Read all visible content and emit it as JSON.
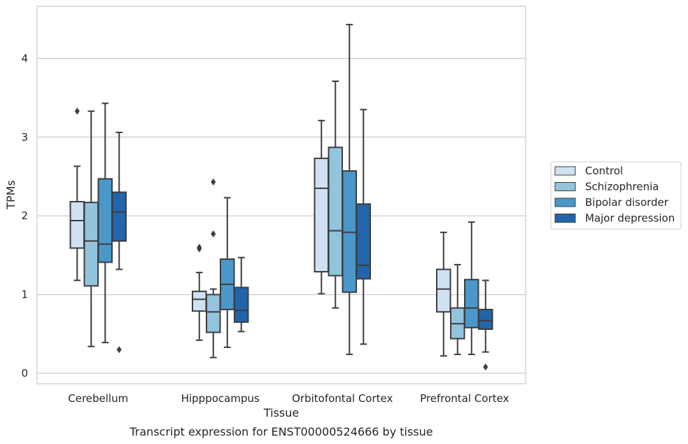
{
  "chart_data": {
    "type": "box",
    "xlabel": "Tissue",
    "ylabel": "TPMs",
    "caption": "Transcript expression for ENST00000524666 by tissue",
    "ylim": [
      -0.13,
      4.66
    ],
    "yticks": [
      0,
      1,
      2,
      3,
      4
    ],
    "grid": true,
    "legend_position": "right",
    "categories": [
      "Cerebellum",
      "Hipppocampus",
      "Orbitofontal Cortex",
      "Prefrontal Cortex"
    ],
    "series": [
      {
        "name": "Control",
        "color": "#cfe1f2",
        "boxes": [
          {
            "whislo": 1.18,
            "q1": 1.59,
            "med": 1.94,
            "q3": 2.18,
            "whishi": 2.63,
            "fliers": [
              3.33
            ]
          },
          {
            "whislo": 0.42,
            "q1": 0.79,
            "med": 0.94,
            "q3": 1.04,
            "whishi": 1.28,
            "fliers": [
              1.58,
              1.6
            ]
          },
          {
            "whislo": 1.01,
            "q1": 1.29,
            "med": 2.35,
            "q3": 2.73,
            "whishi": 3.21,
            "fliers": []
          },
          {
            "whislo": 0.22,
            "q1": 0.78,
            "med": 1.07,
            "q3": 1.32,
            "whishi": 1.79,
            "fliers": []
          }
        ]
      },
      {
        "name": "Schizophrenia",
        "color": "#93c4de",
        "boxes": [
          {
            "whislo": 0.34,
            "q1": 1.11,
            "med": 1.68,
            "q3": 2.17,
            "whishi": 3.33,
            "fliers": []
          },
          {
            "whislo": 0.2,
            "q1": 0.52,
            "med": 0.78,
            "q3": 1.0,
            "whishi": 1.07,
            "fliers": [
              1.77,
              2.43
            ]
          },
          {
            "whislo": 0.83,
            "q1": 1.24,
            "med": 1.81,
            "q3": 2.87,
            "whishi": 3.71,
            "fliers": []
          },
          {
            "whislo": 0.24,
            "q1": 0.44,
            "med": 0.63,
            "q3": 0.83,
            "whishi": 1.38,
            "fliers": []
          }
        ]
      },
      {
        "name": "Bipolar disorder",
        "color": "#4a98c9",
        "boxes": [
          {
            "whislo": 0.39,
            "q1": 1.41,
            "med": 1.64,
            "q3": 2.47,
            "whishi": 3.43,
            "fliers": []
          },
          {
            "whislo": 0.33,
            "q1": 0.81,
            "med": 1.13,
            "q3": 1.45,
            "whishi": 2.23,
            "fliers": []
          },
          {
            "whislo": 0.24,
            "q1": 1.03,
            "med": 1.79,
            "q3": 2.57,
            "whishi": 4.43,
            "fliers": []
          },
          {
            "whislo": 0.24,
            "q1": 0.58,
            "med": 0.83,
            "q3": 1.19,
            "whishi": 1.92,
            "fliers": []
          }
        ]
      },
      {
        "name": "Major depression",
        "color": "#2265ab",
        "boxes": [
          {
            "whislo": 1.32,
            "q1": 1.68,
            "med": 2.05,
            "q3": 2.3,
            "whishi": 3.06,
            "fliers": [
              0.3
            ]
          },
          {
            "whislo": 0.53,
            "q1": 0.65,
            "med": 0.8,
            "q3": 1.09,
            "whishi": 1.47,
            "fliers": []
          },
          {
            "whislo": 0.37,
            "q1": 1.2,
            "med": 1.37,
            "q3": 2.15,
            "whishi": 3.35,
            "fliers": []
          },
          {
            "whislo": 0.27,
            "q1": 0.56,
            "med": 0.67,
            "q3": 0.81,
            "whishi": 1.18,
            "fliers": [
              0.08
            ]
          }
        ]
      }
    ]
  }
}
